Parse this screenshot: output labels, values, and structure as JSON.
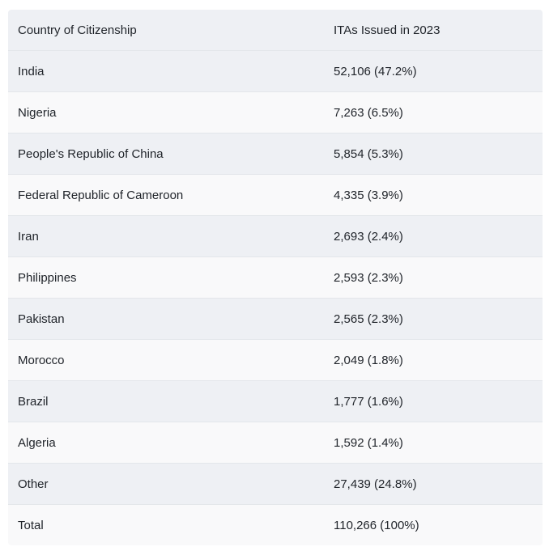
{
  "table": {
    "headers": [
      "Country of Citizenship",
      "ITAs Issued in 2023"
    ],
    "rows": [
      {
        "country": "India",
        "itas": "52,106 (47.2%)"
      },
      {
        "country": "Nigeria",
        "itas": "7,263 (6.5%)"
      },
      {
        "country": "People's Republic of China",
        "itas": "5,854 (5.3%)"
      },
      {
        "country": "Federal Republic of Cameroon",
        "itas": "4,335 (3.9%)"
      },
      {
        "country": "Iran",
        "itas": "2,693 (2.4%)"
      },
      {
        "country": "Philippines",
        "itas": "2,593 (2.3%)"
      },
      {
        "country": "Pakistan",
        "itas": "2,565 (2.3%)"
      },
      {
        "country": "Morocco",
        "itas": "2,049 (1.8%)"
      },
      {
        "country": "Brazil",
        "itas": "1,777 (1.6%)"
      },
      {
        "country": "Algeria",
        "itas": "1,592 (1.4%)"
      },
      {
        "country": "Other",
        "itas": "27,439 (24.8%)"
      },
      {
        "country": "Total",
        "itas": "110,266 (100%)"
      }
    ]
  },
  "colors": {
    "stripe_dark": "#eef0f4",
    "stripe_light": "#f9f9fa",
    "text": "#1f2329",
    "border": "#e3e6ea"
  }
}
